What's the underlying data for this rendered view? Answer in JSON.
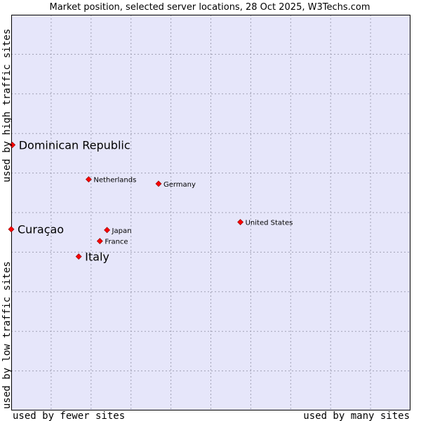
{
  "chart_data": {
    "type": "scatter",
    "title": "Market position, selected server locations, 28 Oct 2025, W3Techs.com",
    "xlabel_left": "used by fewer sites",
    "xlabel_right": "used by many sites",
    "ylabel_bottom": "used by low traffic sites",
    "ylabel_top": "used by high traffic sites",
    "xlim": [
      0,
      100
    ],
    "ylim": [
      0,
      100
    ],
    "grid": true,
    "marker_color": "#ff0000",
    "background_color": "#e6e6fa",
    "points": [
      {
        "label": "Dominican Republic",
        "x": 0.3,
        "y": 67.1,
        "highlight": true
      },
      {
        "label": "Netherlands",
        "x": 19.4,
        "y": 58.4,
        "highlight": false
      },
      {
        "label": "Germany",
        "x": 36.9,
        "y": 57.3,
        "highlight": false
      },
      {
        "label": "United States",
        "x": 57.4,
        "y": 47.6,
        "highlight": false
      },
      {
        "label": "Curaçao",
        "x": 0.0,
        "y": 45.8,
        "highlight": true
      },
      {
        "label": "Japan",
        "x": 24.0,
        "y": 45.6,
        "highlight": false
      },
      {
        "label": "France",
        "x": 22.2,
        "y": 42.8,
        "highlight": false
      },
      {
        "label": "Italy",
        "x": 16.9,
        "y": 38.9,
        "highlight": true
      }
    ]
  }
}
